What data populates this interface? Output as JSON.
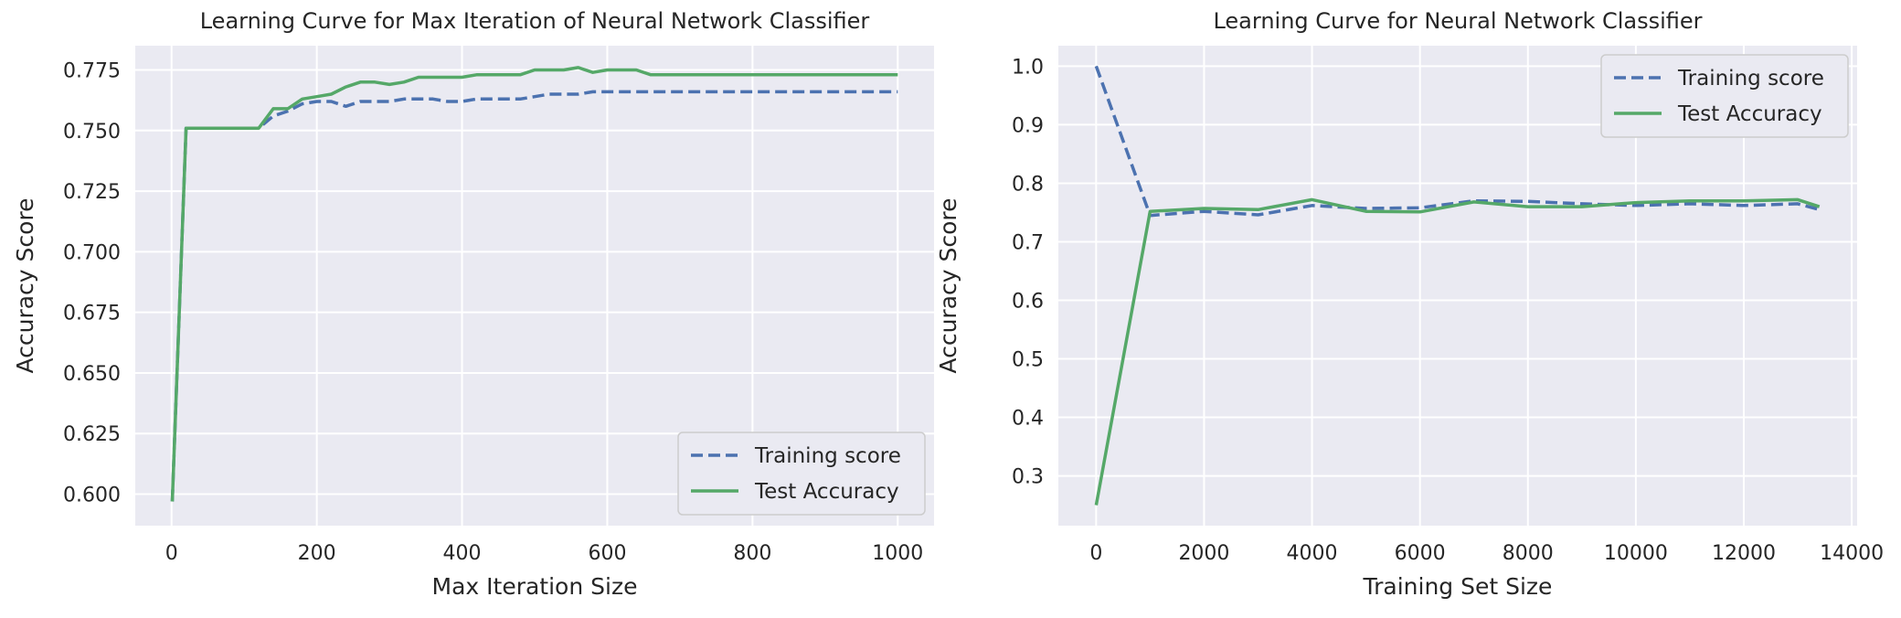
{
  "colors": {
    "axes_bg": "#EAEAF2",
    "grid": "#FFFFFF",
    "training": "#4C72B0",
    "test": "#55A868",
    "legend_bg": "#EAEAF2",
    "legend_border": "#CCCCCC"
  },
  "chart_data": [
    {
      "type": "line",
      "title": "Learning Curve for Max Iteration of Neural Network Classifier",
      "xlabel": "Max Iteration Size",
      "ylabel": "Accuracy Score",
      "xlim": [
        -50,
        1050
      ],
      "ylim": [
        0.587,
        0.785
      ],
      "xticks": [
        0,
        200,
        400,
        600,
        800,
        1000
      ],
      "xtick_labels": [
        "0",
        "200",
        "400",
        "600",
        "800",
        "1000"
      ],
      "yticks": [
        0.6,
        0.625,
        0.65,
        0.675,
        0.7,
        0.725,
        0.75,
        0.775
      ],
      "ytick_labels": [
        "0.600",
        "0.625",
        "0.650",
        "0.675",
        "0.700",
        "0.725",
        "0.750",
        "0.775"
      ],
      "grid": true,
      "legend_position": "lower-right",
      "x": [
        1,
        20,
        40,
        60,
        80,
        100,
        120,
        140,
        160,
        180,
        200,
        220,
        240,
        260,
        280,
        300,
        320,
        340,
        360,
        380,
        400,
        420,
        440,
        460,
        480,
        500,
        520,
        540,
        560,
        580,
        600,
        620,
        640,
        660,
        680,
        700,
        720,
        740,
        760,
        780,
        800,
        820,
        840,
        860,
        880,
        900,
        920,
        940,
        960,
        980,
        1000
      ],
      "series": [
        {
          "name": "Training score",
          "style": "dashed",
          "values": [
            0.597,
            0.751,
            0.751,
            0.751,
            0.751,
            0.751,
            0.751,
            0.756,
            0.758,
            0.761,
            0.762,
            0.762,
            0.76,
            0.762,
            0.762,
            0.762,
            0.763,
            0.763,
            0.763,
            0.762,
            0.762,
            0.763,
            0.763,
            0.763,
            0.763,
            0.764,
            0.765,
            0.765,
            0.765,
            0.766,
            0.766,
            0.766,
            0.766,
            0.766,
            0.766,
            0.766,
            0.766,
            0.766,
            0.766,
            0.766,
            0.766,
            0.766,
            0.766,
            0.766,
            0.766,
            0.766,
            0.766,
            0.766,
            0.766,
            0.766,
            0.766
          ]
        },
        {
          "name": "Test Accuracy",
          "style": "solid",
          "values": [
            0.597,
            0.751,
            0.751,
            0.751,
            0.751,
            0.751,
            0.751,
            0.759,
            0.759,
            0.763,
            0.764,
            0.765,
            0.768,
            0.77,
            0.77,
            0.769,
            0.77,
            0.772,
            0.772,
            0.772,
            0.772,
            0.773,
            0.773,
            0.773,
            0.773,
            0.775,
            0.775,
            0.775,
            0.776,
            0.774,
            0.775,
            0.775,
            0.775,
            0.773,
            0.773,
            0.773,
            0.773,
            0.773,
            0.773,
            0.773,
            0.773,
            0.773,
            0.773,
            0.773,
            0.773,
            0.773,
            0.773,
            0.773,
            0.773,
            0.773,
            0.773
          ]
        }
      ]
    },
    {
      "type": "line",
      "title": "Learning Curve for Neural Network Classifier",
      "xlabel": "Training Set Size",
      "ylabel": "Accuracy Score",
      "xlim": [
        -700,
        14100
      ],
      "ylim": [
        0.215,
        1.035
      ],
      "xticks": [
        0,
        2000,
        4000,
        6000,
        8000,
        10000,
        12000,
        14000
      ],
      "xtick_labels": [
        "0",
        "2000",
        "4000",
        "6000",
        "8000",
        "10000",
        "12000",
        "14000"
      ],
      "yticks": [
        0.3,
        0.4,
        0.5,
        0.6,
        0.7,
        0.8,
        0.9,
        1.0
      ],
      "ytick_labels": [
        "0.3",
        "0.4",
        "0.5",
        "0.6",
        "0.7",
        "0.8",
        "0.9",
        "1.0"
      ],
      "grid": true,
      "legend_position": "upper-right",
      "x": [
        1,
        1000,
        2000,
        3000,
        4000,
        5000,
        6000,
        7000,
        8000,
        9000,
        10000,
        11000,
        12000,
        13000,
        13400
      ],
      "series": [
        {
          "name": "Training score",
          "style": "dashed",
          "values": [
            1.0,
            0.745,
            0.752,
            0.746,
            0.762,
            0.757,
            0.758,
            0.77,
            0.769,
            0.765,
            0.762,
            0.765,
            0.762,
            0.765,
            0.755
          ]
        },
        {
          "name": "Test Accuracy",
          "style": "solid",
          "values": [
            0.25,
            0.752,
            0.757,
            0.755,
            0.772,
            0.752,
            0.751,
            0.768,
            0.76,
            0.76,
            0.767,
            0.77,
            0.77,
            0.772,
            0.76
          ]
        }
      ]
    }
  ]
}
